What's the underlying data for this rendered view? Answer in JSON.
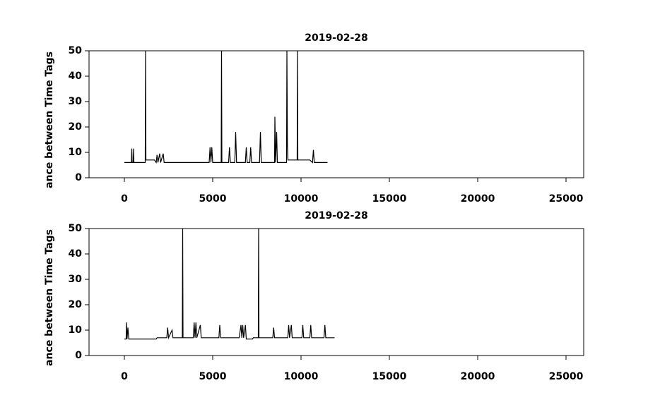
{
  "chart_data": [
    {
      "type": "line",
      "title": "2019-02-28",
      "y_label": "ance between Time Tags",
      "color": "#000000",
      "xlim": [
        -2000,
        26000
      ],
      "xticks": [
        0,
        5000,
        10000,
        15000,
        20000,
        25000
      ],
      "ylim": [
        0,
        50
      ],
      "yticks": [
        0,
        10,
        20,
        30,
        40,
        50
      ],
      "x": [
        0,
        400,
        420,
        440,
        500,
        520,
        540,
        1180,
        1200,
        1220,
        1700,
        1800,
        1850,
        1900,
        2000,
        2050,
        2200,
        2250,
        4800,
        4850,
        4900,
        4950,
        5000,
        5480,
        5500,
        5520,
        5900,
        5950,
        6000,
        6250,
        6300,
        6350,
        6850,
        6900,
        6950,
        7100,
        7150,
        7200,
        7650,
        7700,
        7750,
        8500,
        8520,
        8560,
        8620,
        8660,
        9180,
        9200,
        9230,
        9260,
        9780,
        9800,
        9820,
        10500,
        10650,
        10700,
        10750,
        11500
      ],
      "values": [
        6,
        6,
        11.5,
        6,
        6,
        11.5,
        6,
        6,
        50,
        7,
        7,
        6,
        9,
        6,
        9.5,
        6,
        9.5,
        6,
        6,
        12,
        6,
        12,
        6,
        6,
        50,
        6,
        6,
        12,
        6,
        6,
        18,
        6,
        6,
        12,
        6,
        6,
        12,
        6,
        6,
        18,
        6,
        6,
        24,
        6,
        18,
        6,
        6,
        50,
        13,
        7,
        7,
        50,
        7,
        7,
        6,
        11,
        6,
        6
      ]
    },
    {
      "type": "line",
      "title": "2019-02-28",
      "y_label": "ance between Time Tags",
      "color": "#000000",
      "xlim": [
        -2000,
        26000
      ],
      "xticks": [
        0,
        5000,
        10000,
        15000,
        20000,
        25000
      ],
      "ylim": [
        0,
        50
      ],
      "yticks": [
        0,
        10,
        20,
        30,
        40,
        50
      ],
      "x": [
        0,
        100,
        120,
        150,
        200,
        250,
        1800,
        1850,
        2400,
        2450,
        2500,
        2700,
        2750,
        3280,
        3300,
        3320,
        3900,
        3950,
        4000,
        4050,
        4100,
        4300,
        4350,
        5350,
        5400,
        5450,
        6500,
        6600,
        6650,
        6700,
        6750,
        6850,
        6900,
        7250,
        7300,
        7580,
        7600,
        7620,
        8400,
        8450,
        8500,
        9250,
        9300,
        9350,
        9450,
        9500,
        10050,
        10100,
        10150,
        10500,
        10550,
        10600,
        11300,
        11350,
        11400,
        11900
      ],
      "values": [
        6.5,
        6.5,
        13,
        6.5,
        11,
        6.5,
        6.5,
        7,
        7,
        11,
        7,
        10,
        7,
        7,
        50,
        7,
        7,
        13,
        7,
        13,
        7,
        12,
        7,
        7,
        12,
        7,
        7,
        12,
        7,
        12,
        7,
        12,
        6.5,
        6.5,
        7,
        7,
        50,
        7,
        7,
        11,
        7,
        7,
        12,
        7,
        12,
        7,
        7,
        12,
        7,
        7,
        12,
        7,
        7,
        12,
        7,
        7
      ]
    }
  ]
}
